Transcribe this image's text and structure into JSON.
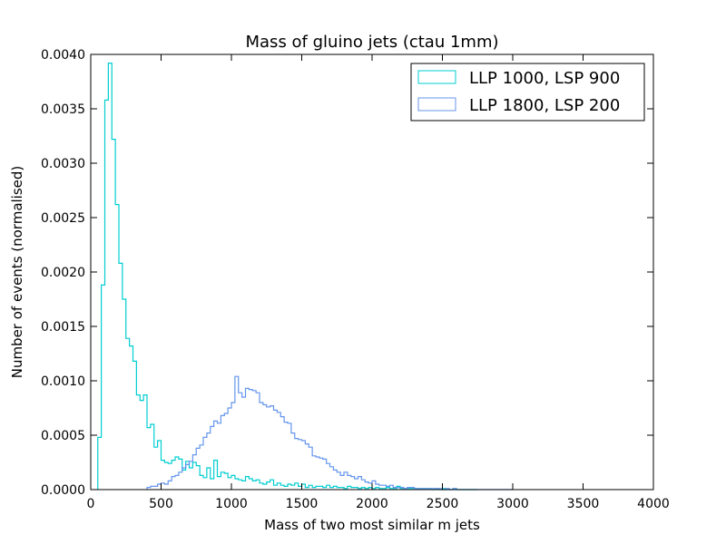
{
  "chart_data": {
    "type": "histogram",
    "title": "Mass of gluino jets (ctau 1mm)",
    "xlabel": "Mass of two most similar m jets",
    "ylabel": "Number of events (normalised)",
    "xlim": [
      0,
      4000
    ],
    "ylim": [
      0,
      0.004
    ],
    "xticks": [
      0,
      500,
      1000,
      1500,
      2000,
      2500,
      3000,
      3500,
      4000
    ],
    "xtick_labels": [
      "0",
      "500",
      "1000",
      "1500",
      "2000",
      "2500",
      "3000",
      "3500",
      "4000"
    ],
    "yticks": [
      0,
      0.0005,
      0.001,
      0.0015,
      0.002,
      0.0025,
      0.003,
      0.0035,
      0.004
    ],
    "ytick_labels": [
      "0.0000",
      "0.0005",
      "0.0010",
      "0.0015",
      "0.0020",
      "0.0025",
      "0.0030",
      "0.0035",
      "0.0040"
    ],
    "grid": false,
    "legend_position": "top-right",
    "bin_width": 25,
    "series": [
      {
        "name": "LLP 1000, LSP 900",
        "color": "#00CED1",
        "x_start": 50,
        "values": [
          0.00048,
          0.00188,
          0.00358,
          0.00392,
          0.00322,
          0.00262,
          0.00208,
          0.00175,
          0.00139,
          0.00132,
          0.00118,
          0.00087,
          0.00082,
          0.00087,
          0.00057,
          0.0006,
          0.00039,
          0.00045,
          0.00027,
          0.00025,
          0.00024,
          0.00027,
          0.0003,
          0.00028,
          0.00018,
          0.00026,
          0.0002,
          0.00025,
          0.00022,
          0.00013,
          0.00011,
          0.0002,
          0.0001,
          0.00027,
          0.00012,
          0.00016,
          0.00015,
          0.00011,
          0.00013,
          0.0001,
          9e-05,
          8e-05,
          0.00012,
          0.0001,
          8e-05,
          9e-05,
          6e-05,
          5e-05,
          7e-05,
          9e-05,
          4e-05,
          6e-05,
          4e-05,
          3e-05,
          5e-05,
          4e-05,
          6e-05,
          3e-05,
          5e-05,
          2e-05,
          4e-05,
          2e-05,
          3e-05,
          3e-05,
          2e-05,
          4e-05,
          2e-05,
          3e-05,
          2e-05,
          2e-05,
          1e-05,
          3e-05,
          2e-05,
          2e-05,
          1e-05,
          2e-05,
          1e-05,
          2e-05,
          1e-05,
          2e-05,
          1e-05,
          1e-05,
          2e-05,
          1e-05,
          1e-05,
          3e-05,
          1e-05,
          1e-05,
          1e-05,
          1e-05,
          1e-05,
          1e-05,
          1e-05,
          1e-05,
          1e-05,
          0.0,
          1e-05,
          0.0,
          1e-05,
          0.0,
          0.0,
          1e-05,
          0.0,
          0.0,
          0.0,
          0.0,
          0.0,
          0.0
        ]
      },
      {
        "name": "LLP 1800, LSP 200",
        "color": "#6495ED",
        "x_start": 400,
        "values": [
          2e-05,
          3e-05,
          3e-05,
          5e-05,
          6e-05,
          5e-05,
          8e-05,
          0.00012,
          0.00013,
          0.00016,
          0.0002,
          0.00023,
          0.00026,
          0.00032,
          0.00038,
          0.00041,
          0.00048,
          0.00052,
          0.00058,
          0.00063,
          0.00061,
          0.00068,
          0.0007,
          0.00075,
          0.0008,
          0.00104,
          0.00089,
          0.00085,
          0.00093,
          0.00092,
          0.00091,
          0.00089,
          0.0008,
          0.00078,
          0.00076,
          0.00077,
          0.00073,
          0.00071,
          0.00067,
          0.00062,
          0.00061,
          0.00052,
          0.00047,
          0.00046,
          0.00045,
          0.00042,
          0.00039,
          0.00031,
          0.0003,
          0.00029,
          0.00028,
          0.00024,
          0.00021,
          0.00018,
          0.00016,
          0.00013,
          0.00016,
          0.00013,
          0.00012,
          0.0001,
          0.00012,
          9e-05,
          7e-05,
          6e-05,
          8e-05,
          5e-05,
          4e-05,
          4e-05,
          3e-05,
          4e-05,
          2e-05,
          2e-05,
          2e-05,
          1e-05,
          2e-05,
          2e-05,
          1e-05,
          1e-05,
          1e-05,
          1e-05,
          1e-05,
          1e-05,
          1e-05,
          1e-05,
          0.0,
          1e-05,
          0.0,
          1e-05,
          0.0,
          0.0,
          0.0,
          0.0,
          0.0,
          0.0,
          0.0,
          0.0,
          0.0,
          0.0,
          0.0,
          0.0,
          0.0,
          0.0,
          0.0,
          0.0
        ]
      }
    ]
  }
}
